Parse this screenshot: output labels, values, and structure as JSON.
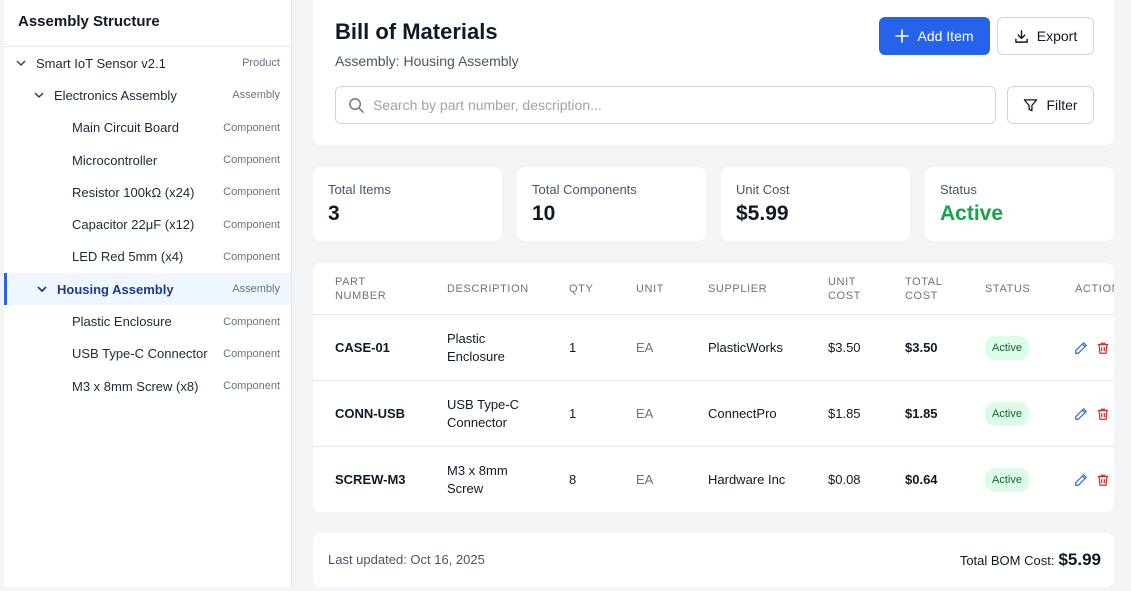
{
  "sidebar": {
    "title": "Assembly Structure",
    "tree": [
      {
        "label": "Smart IoT Sensor v2.1",
        "type": "Product"
      },
      {
        "label": "Electronics Assembly",
        "type": "Assembly"
      },
      {
        "label": "Main Circuit Board",
        "type": "Component"
      },
      {
        "label": "Microcontroller",
        "type": "Component"
      },
      {
        "label": "Resistor 100kΩ (x24)",
        "type": "Component"
      },
      {
        "label": "Capacitor 22μF (x12)",
        "type": "Component"
      },
      {
        "label": "LED Red 5mm (x4)",
        "type": "Component"
      },
      {
        "label": "Housing Assembly",
        "type": "Assembly"
      },
      {
        "label": "Plastic Enclosure",
        "type": "Component"
      },
      {
        "label": "USB Type-C Connector",
        "type": "Component"
      },
      {
        "label": "M3 x 8mm Screw (x8)",
        "type": "Component"
      }
    ]
  },
  "header": {
    "title": "Bill of Materials",
    "subtitle": "Assembly: Housing Assembly",
    "add_label": "Add Item",
    "export_label": "Export",
    "filter_label": "Filter",
    "search_placeholder": "Search by part number, description..."
  },
  "stats": [
    {
      "label": "Total Items",
      "value": "3"
    },
    {
      "label": "Total Components",
      "value": "10"
    },
    {
      "label": "Unit Cost",
      "value": "$5.99"
    },
    {
      "label": "Status",
      "value": "Active"
    }
  ],
  "table": {
    "headers": [
      "PART NUMBER",
      "DESCRIPTION",
      "QTY",
      "UNIT",
      "SUPPLIER",
      "UNIT COST",
      "TOTAL COST",
      "STATUS",
      "ACTIONS"
    ],
    "header_lines": [
      [
        "PART",
        "NUMBER"
      ],
      [
        "DESCRIPTION"
      ],
      [
        "QTY"
      ],
      [
        "UNIT"
      ],
      [
        "SUPPLIER"
      ],
      [
        "UNIT",
        "COST"
      ],
      [
        "TOTAL",
        "COST"
      ],
      [
        "STATUS"
      ],
      [
        "ACTIONS"
      ]
    ],
    "rows": [
      {
        "part": "CASE-01",
        "desc": [
          "Plastic",
          "Enclosure"
        ],
        "qty": "1",
        "unit": "EA",
        "supplier": "PlasticWorks",
        "unit_cost": "$3.50",
        "total_cost": "$3.50",
        "status": "Active"
      },
      {
        "part": "CONN-USB",
        "desc": [
          "USB Type-C",
          "Connector"
        ],
        "qty": "1",
        "unit": "EA",
        "supplier": "ConnectPro",
        "unit_cost": "$1.85",
        "total_cost": "$1.85",
        "status": "Active"
      },
      {
        "part": "SCREW-M3",
        "desc": [
          "M3 x 8mm",
          "Screw"
        ],
        "qty": "8",
        "unit": "EA",
        "supplier": "Hardware Inc",
        "unit_cost": "$0.08",
        "total_cost": "$0.64",
        "status": "Active"
      }
    ]
  },
  "footer": {
    "last_updated": "Last updated: Oct 16, 2025",
    "total_label": "Total BOM Cost:",
    "total_value": "$5.99"
  },
  "colors": {
    "accent": "#2563eb",
    "active_green": "#16a34a",
    "badge_bg": "#dcfce7",
    "delete_red": "#dc2626"
  },
  "icons": {
    "add": "plus-icon",
    "export": "download-icon",
    "search": "search-icon",
    "filter": "filter-icon",
    "edit": "pencil-icon",
    "delete": "trash-icon",
    "expand": "chevron-down-icon"
  }
}
